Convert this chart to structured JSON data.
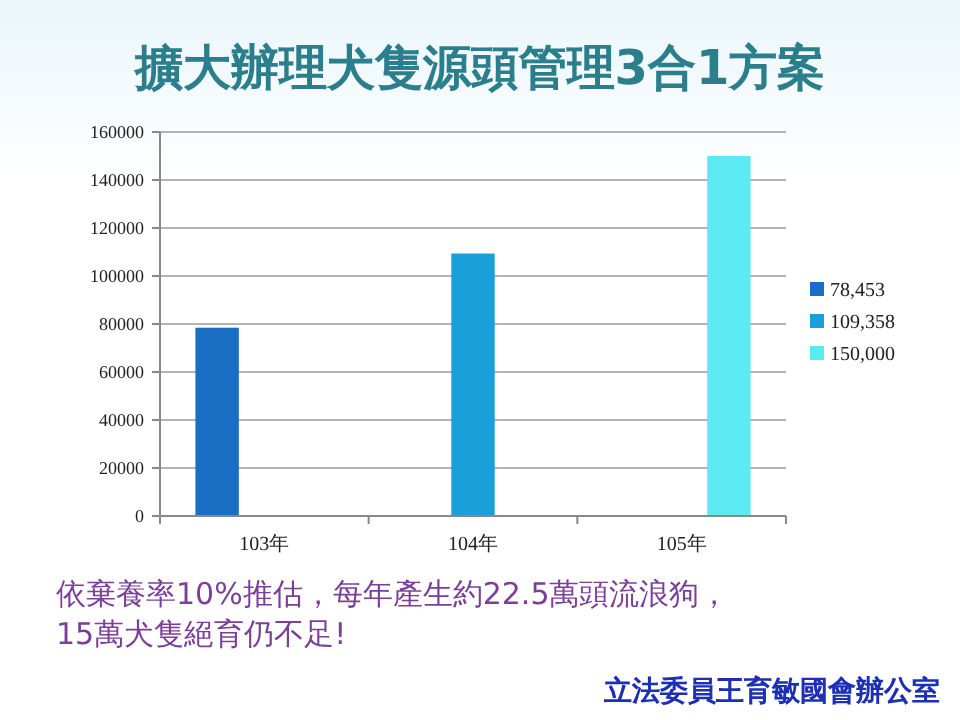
{
  "chart_data": {
    "type": "bar",
    "title": "擴大辦理犬隻源頭管理3合1方案",
    "categories": [
      "103年",
      "104年",
      "105年"
    ],
    "series": [
      {
        "name": "78,453",
        "color": "#1a6fc4",
        "values": [
          78453,
          null,
          null
        ]
      },
      {
        "name": "109,358",
        "color": "#1a9fd8",
        "values": [
          null,
          109358,
          null
        ]
      },
      {
        "name": "150,000",
        "color": "#5ceaf2",
        "values": [
          null,
          null,
          150000
        ]
      }
    ],
    "ylim": [
      0,
      160000
    ],
    "yticks": [
      0,
      20000,
      40000,
      60000,
      80000,
      100000,
      120000,
      140000,
      160000
    ],
    "grid": "y",
    "legend": "right",
    "annotations": [
      "依棄養率10%推估，每年產生約22.5萬頭流浪狗，\n15萬犬隻絕育仍不足!",
      "立法委員王育敏國會辦公室"
    ]
  }
}
